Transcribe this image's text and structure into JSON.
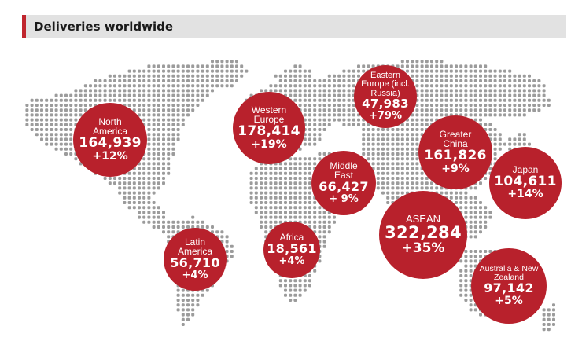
{
  "header": {
    "title": "Deliveries worldwide"
  },
  "colors": {
    "accent": "#c0262e",
    "bubble": "#b8212c",
    "dots": "#9b9b9b",
    "header_bg": "#e2e2e2"
  },
  "regions": [
    {
      "id": "north-america",
      "name": "North America",
      "value": "164,939",
      "growth": "+12%"
    },
    {
      "id": "western-europe",
      "name": "Western Europe",
      "value": "178,414",
      "growth": "+19%"
    },
    {
      "id": "eastern-europe",
      "name": "Eastern Europe (incl. Russia)",
      "value": "47,983",
      "growth": "+79%"
    },
    {
      "id": "greater-china",
      "name": "Greater China",
      "value": "161,826",
      "growth": "+9%"
    },
    {
      "id": "japan",
      "name": "Japan",
      "value": "104,611",
      "growth": "+14%"
    },
    {
      "id": "middle-east",
      "name": "Middle East",
      "value": "66,427",
      "growth": "+ 9%"
    },
    {
      "id": "asean",
      "name": "ASEAN",
      "value": "322,284",
      "growth": "+35%"
    },
    {
      "id": "africa",
      "name": "Africa",
      "value": "18,561",
      "growth": "+4%"
    },
    {
      "id": "latin-america",
      "name": "Latin America",
      "value": "56,710",
      "growth": "+4%"
    },
    {
      "id": "australia-nz",
      "name": "Australia & New Zealand",
      "value": "97,142",
      "growth": "+5%"
    }
  ]
}
